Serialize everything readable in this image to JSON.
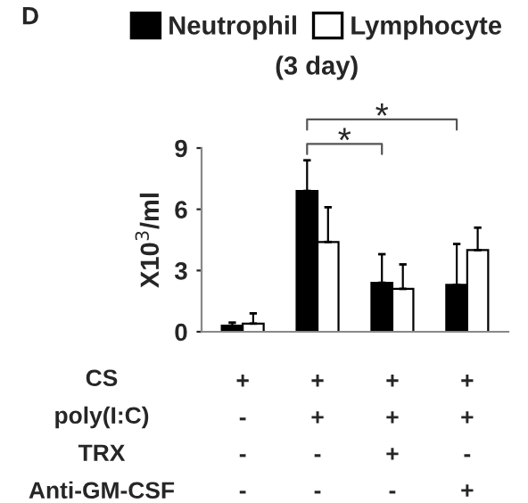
{
  "chart_data": {
    "type": "bar",
    "title": "(3 day)",
    "ylabel": "X10$^{3}$/ml",
    "categories": [
      "+\n-\n-\n-",
      "+\n+\n-\n-",
      "+\n+\n+\n-",
      "+\n+\n-\n+"
    ],
    "series": [
      {
        "name": "Neutrophil",
        "color": "#000000",
        "values": [
          0.3,
          6.9,
          2.4,
          2.3
        ],
        "errors": [
          0.15,
          1.5,
          1.4,
          2.0
        ]
      },
      {
        "name": "Lymphocyte",
        "color": "#ffffff",
        "values": [
          0.4,
          4.4,
          2.1,
          4.0
        ],
        "errors": [
          0.5,
          1.7,
          1.2,
          1.1
        ]
      }
    ],
    "ylim": [
      0,
      9
    ],
    "yticks": [
      0,
      3,
      6,
      9
    ],
    "grid": false,
    "legend": "top",
    "annotations": [
      "D",
      "CS",
      "poly(I:C)",
      "TRX",
      "Anti-GM-CSF",
      "*",
      "*"
    ]
  }
}
